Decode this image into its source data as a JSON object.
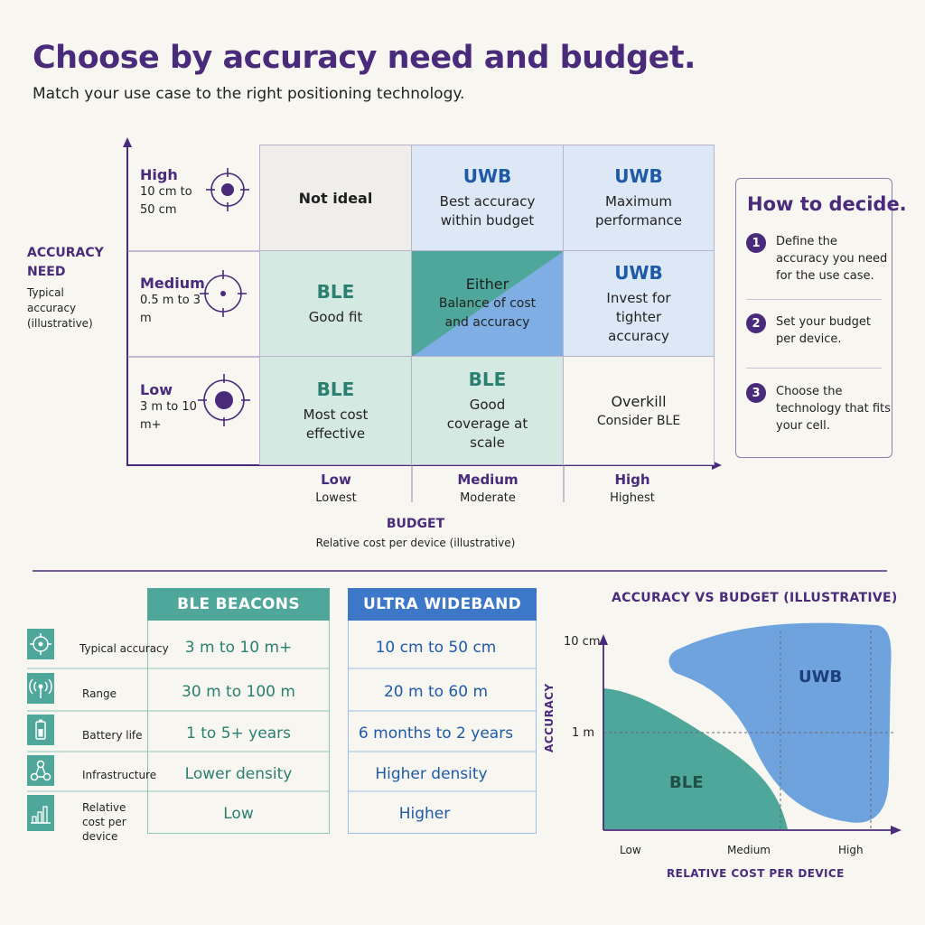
{
  "header": {
    "title": "Choose by accuracy need and budget.",
    "subtitle": "Match your use case to the right positioning technology."
  },
  "colors": {
    "purple": "#4a2a7a",
    "teal": "#4ea79a",
    "teal_light": "#d4e9e2",
    "blue": "#3d78c8",
    "blue_light": "#dce8f6",
    "blue_chart": "#6fa3de",
    "grey_cell": "#efeeea"
  },
  "matrix": {
    "y_axis": {
      "title": "ACCURACY NEED",
      "note": "Typical accuracy (illustrative)"
    },
    "x_axis": {
      "title": "BUDGET",
      "note": "Relative cost per device (illustrative)"
    },
    "rows": [
      {
        "level": "High",
        "value": "10 cm to 50 cm",
        "icon": "target-small-icon"
      },
      {
        "level": "Medium",
        "value": "0.5 m to 3 m",
        "icon": "target-dot-icon"
      },
      {
        "level": "Low",
        "value": "3 m to 10 m+",
        "icon": "target-large-icon"
      }
    ],
    "columns": [
      {
        "level": "Low",
        "value": "Lowest"
      },
      {
        "level": "Medium",
        "value": "Moderate"
      },
      {
        "level": "High",
        "value": "Highest"
      }
    ],
    "cells": {
      "high_low": {
        "tech": "",
        "desc": "Not ideal"
      },
      "high_medium": {
        "tech": "UWB",
        "desc": "Best accuracy within budget"
      },
      "high_high": {
        "tech": "UWB",
        "desc": "Maximum performance"
      },
      "medium_low": {
        "tech": "BLE",
        "desc": "Good fit"
      },
      "medium_medium": {
        "tech": "Either",
        "desc": "Balance of cost and accuracy"
      },
      "medium_high": {
        "tech": "UWB",
        "desc": "Invest for tighter accuracy"
      },
      "low_low": {
        "tech": "BLE",
        "desc": "Most cost effective"
      },
      "low_medium": {
        "tech": "BLE",
        "desc": "Good coverage at scale"
      },
      "low_high": {
        "tech": "Overkill",
        "desc": "Consider BLE"
      }
    }
  },
  "how_to_decide": {
    "title": "How to decide.",
    "steps": [
      {
        "num": "1",
        "text": "Define the accuracy you need for the use case."
      },
      {
        "num": "2",
        "text": "Set your budget per device."
      },
      {
        "num": "3",
        "text": "Choose the technology that fits your cell."
      }
    ]
  },
  "comparison": {
    "rows": [
      {
        "label": "Typical accuracy",
        "icon": "crosshair-icon"
      },
      {
        "label": "Range",
        "icon": "signal-icon"
      },
      {
        "label": "Battery life",
        "icon": "battery-icon"
      },
      {
        "label": "Infrastructure",
        "icon": "network-icon"
      },
      {
        "label": "Relative cost per device",
        "icon": "bar-chart-icon"
      }
    ],
    "ble": {
      "header": "BLE BEACONS",
      "values": [
        "3 m to 10 m+",
        "30 m to 100 m",
        "1 to 5+ years",
        "Lower density",
        "Low"
      ]
    },
    "uwb": {
      "header": "ULTRA WIDEBAND",
      "values": [
        "10 cm to 50 cm",
        "20 m to 60 m",
        "6 months to 2 years",
        "Higher density",
        "Higher"
      ]
    }
  },
  "mini_chart": {
    "title": "ACCURACY VS BUDGET (ILLUSTRATIVE)",
    "ylabel": "ACCURACY",
    "xlabel": "RELATIVE COST PER DEVICE",
    "y_ticks": [
      "10 cm",
      "1 m"
    ],
    "x_ticks": [
      "Low",
      "Medium",
      "High"
    ],
    "regions": [
      "BLE",
      "UWB"
    ]
  }
}
